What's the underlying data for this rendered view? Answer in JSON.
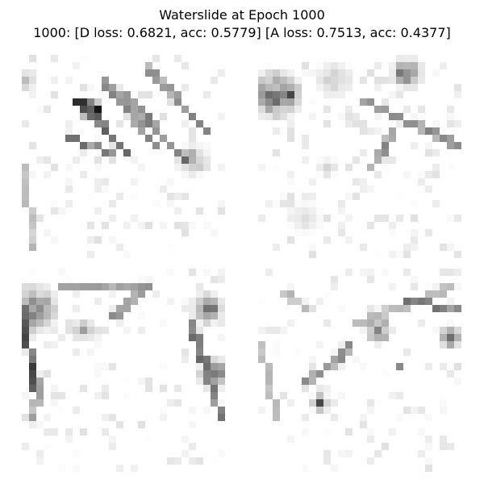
{
  "figure": {
    "title": "Waterslide at Epoch 1000",
    "subtitle": "1000: [D loss: 0.6821, acc: 0.5779]  [A loss: 0.7513, acc: 0.4377]"
  },
  "colormap": "gray_r",
  "panels": [
    {
      "id": "sample-1"
    },
    {
      "id": "sample-2"
    },
    {
      "id": "sample-3"
    },
    {
      "id": "sample-4"
    }
  ]
}
